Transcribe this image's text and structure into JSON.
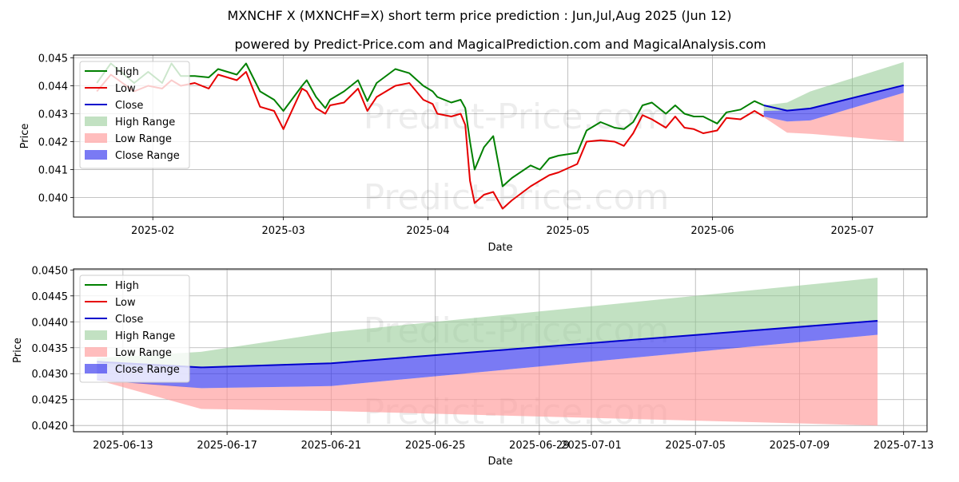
{
  "title": "MXNCHF X (MXNCHF=X) short term price prediction : Jun,Jul,Aug 2025 (Jun 12)",
  "subtitle": "powered by Predict-Price.com and MagicalPrediction.com and MagicalAnalysis.com",
  "watermark": "Predict-Price.com",
  "colors": {
    "high": "#008000",
    "low": "#e60000",
    "close": "#0000cc",
    "high_range": "#8fc98f",
    "low_range": "#ff9a9a",
    "close_range": "#3333ee",
    "grid": "#b0b0b0"
  },
  "legend": [
    "High",
    "Low",
    "Close",
    "High Range",
    "Low Range",
    "Close Range"
  ],
  "chart_data": [
    {
      "type": "line",
      "title": "",
      "xlabel": "Date",
      "ylabel": "Price",
      "xlim": [
        "2025-01-15",
        "2025-07-17"
      ],
      "ylim": [
        0.0393,
        0.0451
      ],
      "yticks": [
        0.04,
        0.041,
        0.042,
        0.043,
        0.044,
        0.045
      ],
      "ytick_labels": [
        "0.040",
        "0.041",
        "0.042",
        "0.043",
        "0.044",
        "0.045"
      ],
      "xticks": [
        "2025-02-01",
        "2025-03-01",
        "2025-04-01",
        "2025-05-01",
        "2025-06-01",
        "2025-07-01"
      ],
      "xtick_labels": [
        "2025-02",
        "2025-03",
        "2025-04",
        "2025-05",
        "2025-06",
        "2025-07"
      ],
      "grid": true,
      "legend_position": "top-left",
      "series": [
        {
          "name": "High",
          "x": [
            "2025-01-20",
            "2025-01-23",
            "2025-01-28",
            "2025-01-31",
            "2025-02-03",
            "2025-02-05",
            "2025-02-07",
            "2025-02-10",
            "2025-02-13",
            "2025-02-15",
            "2025-02-19",
            "2025-02-21",
            "2025-02-24",
            "2025-02-27",
            "2025-03-01",
            "2025-03-05",
            "2025-03-06",
            "2025-03-08",
            "2025-03-10",
            "2025-03-11",
            "2025-03-14",
            "2025-03-17",
            "2025-03-19",
            "2025-03-21",
            "2025-03-25",
            "2025-03-28",
            "2025-03-31",
            "2025-04-02",
            "2025-04-03",
            "2025-04-06",
            "2025-04-08",
            "2025-04-09",
            "2025-04-10",
            "2025-04-11",
            "2025-04-13",
            "2025-04-15",
            "2025-04-17",
            "2025-04-19",
            "2025-04-23",
            "2025-04-25",
            "2025-04-27",
            "2025-04-29",
            "2025-05-03",
            "2025-05-05",
            "2025-05-08",
            "2025-05-11",
            "2025-05-13",
            "2025-05-15",
            "2025-05-17",
            "2025-05-19",
            "2025-05-22",
            "2025-05-24",
            "2025-05-26",
            "2025-05-28",
            "2025-05-30",
            "2025-06-02",
            "2025-06-04",
            "2025-06-07",
            "2025-06-10",
            "2025-06-12"
          ],
          "values": [
            0.0441,
            0.0448,
            0.0441,
            0.0445,
            0.0441,
            0.0448,
            0.04435,
            0.04435,
            0.0443,
            0.0446,
            0.0444,
            0.0448,
            0.0438,
            0.0435,
            0.0431,
            0.044,
            0.0442,
            0.0436,
            0.0432,
            0.0435,
            0.0438,
            0.0442,
            0.04345,
            0.0441,
            0.0446,
            0.04445,
            0.044,
            0.0438,
            0.0436,
            0.0434,
            0.0435,
            0.0432,
            0.042,
            0.041,
            0.0418,
            0.0422,
            0.0404,
            0.0407,
            0.04115,
            0.041,
            0.0414,
            0.0415,
            0.0416,
            0.0424,
            0.0427,
            0.0425,
            0.04245,
            0.0427,
            0.0433,
            0.0434,
            0.043,
            0.0433,
            0.043,
            0.0429,
            0.0429,
            0.04265,
            0.04305,
            0.04315,
            0.04345,
            0.0433
          ]
        },
        {
          "name": "Low",
          "x": [
            "2025-01-20",
            "2025-01-23",
            "2025-01-28",
            "2025-01-31",
            "2025-02-03",
            "2025-02-05",
            "2025-02-07",
            "2025-02-10",
            "2025-02-13",
            "2025-02-15",
            "2025-02-19",
            "2025-02-21",
            "2025-02-24",
            "2025-02-27",
            "2025-03-01",
            "2025-03-05",
            "2025-03-06",
            "2025-03-08",
            "2025-03-10",
            "2025-03-11",
            "2025-03-14",
            "2025-03-17",
            "2025-03-19",
            "2025-03-21",
            "2025-03-25",
            "2025-03-28",
            "2025-03-31",
            "2025-04-02",
            "2025-04-03",
            "2025-04-06",
            "2025-04-08",
            "2025-04-09",
            "2025-04-10",
            "2025-04-11",
            "2025-04-13",
            "2025-04-15",
            "2025-04-17",
            "2025-04-19",
            "2025-04-23",
            "2025-04-25",
            "2025-04-27",
            "2025-04-29",
            "2025-05-03",
            "2025-05-05",
            "2025-05-08",
            "2025-05-11",
            "2025-05-13",
            "2025-05-15",
            "2025-05-17",
            "2025-05-19",
            "2025-05-22",
            "2025-05-24",
            "2025-05-26",
            "2025-05-28",
            "2025-05-30",
            "2025-06-02",
            "2025-06-04",
            "2025-06-07",
            "2025-06-10",
            "2025-06-12"
          ],
          "values": [
            0.0438,
            0.0444,
            0.0438,
            0.044,
            0.0439,
            0.0442,
            0.044,
            0.0441,
            0.0439,
            0.0444,
            0.0442,
            0.0445,
            0.04325,
            0.0431,
            0.04245,
            0.0439,
            0.0438,
            0.0432,
            0.043,
            0.0433,
            0.0434,
            0.0439,
            0.0431,
            0.0436,
            0.044,
            0.0441,
            0.0435,
            0.04335,
            0.043,
            0.0429,
            0.043,
            0.0426,
            0.0406,
            0.0398,
            0.0401,
            0.0402,
            0.0396,
            0.0399,
            0.0404,
            0.0406,
            0.0408,
            0.0409,
            0.0412,
            0.042,
            0.04205,
            0.042,
            0.04185,
            0.0423,
            0.04295,
            0.0428,
            0.0425,
            0.0429,
            0.0425,
            0.04245,
            0.0423,
            0.0424,
            0.04285,
            0.0428,
            0.0431,
            0.0429
          ]
        },
        {
          "name": "Close",
          "x": [
            "2025-06-12",
            "2025-06-17",
            "2025-06-22",
            "2025-07-12"
          ],
          "values": [
            0.0433,
            0.04311,
            0.04319,
            0.04402
          ]
        }
      ],
      "ranges": [
        {
          "name": "High Range",
          "x": [
            "2025-06-12",
            "2025-06-17",
            "2025-06-22",
            "2025-07-12"
          ],
          "upper": [
            0.0433,
            0.0434,
            0.0438,
            0.04485
          ],
          "lower": [
            0.0431,
            0.04312,
            0.0432,
            0.04402
          ]
        },
        {
          "name": "Low Range",
          "x": [
            "2025-06-12",
            "2025-06-17",
            "2025-06-22",
            "2025-07-12"
          ],
          "upper": [
            0.0429,
            0.04272,
            0.04276,
            0.04375
          ],
          "lower": [
            0.04288,
            0.04232,
            0.04228,
            0.042
          ]
        },
        {
          "name": "Close Range",
          "x": [
            "2025-06-12",
            "2025-06-17",
            "2025-06-22",
            "2025-07-12"
          ],
          "upper": [
            0.0431,
            0.04312,
            0.0432,
            0.04402
          ],
          "lower": [
            0.0429,
            0.04272,
            0.04276,
            0.04375
          ]
        }
      ]
    },
    {
      "type": "line",
      "title": "",
      "xlabel": "Date",
      "ylabel": "Price",
      "xlim": [
        "2025-06-11.10",
        "2025-07-13.90"
      ],
      "ylim": [
        0.04188,
        0.04502
      ],
      "yticks": [
        0.042,
        0.0425,
        0.043,
        0.0435,
        0.044,
        0.0445,
        0.045
      ],
      "ytick_labels": [
        "0.0420",
        "0.0425",
        "0.0430",
        "0.0435",
        "0.0440",
        "0.0445",
        "0.0450"
      ],
      "xticks": [
        "2025-06-13",
        "2025-06-17",
        "2025-06-21",
        "2025-06-25",
        "2025-06-29",
        "2025-07-01",
        "2025-07-05",
        "2025-07-09",
        "2025-07-13"
      ],
      "xtick_labels": [
        "2025-06-13",
        "2025-06-17",
        "2025-06-21",
        "2025-06-25",
        "2025-06-29",
        "2025-07-01",
        "2025-07-05",
        "2025-07-09",
        "2025-07-13"
      ],
      "grid": true,
      "legend_position": "top-left",
      "series": [
        {
          "name": "Close",
          "x": [
            "2025-06-12",
            "2025-06-16",
            "2025-06-21",
            "2025-07-12"
          ],
          "values": [
            0.04323,
            0.04312,
            0.0432,
            0.04402
          ]
        }
      ],
      "ranges": [
        {
          "name": "High Range",
          "x": [
            "2025-06-12",
            "2025-06-16",
            "2025-06-21",
            "2025-07-12"
          ],
          "upper": [
            0.0433,
            0.04342,
            0.0438,
            0.04485
          ],
          "lower": [
            0.04312,
            0.04312,
            0.0432,
            0.04402
          ]
        },
        {
          "name": "Low Range",
          "x": [
            "2025-06-12",
            "2025-06-16",
            "2025-06-21",
            "2025-07-12"
          ],
          "upper": [
            0.0429,
            0.04272,
            0.04276,
            0.04375
          ],
          "lower": [
            0.04288,
            0.04232,
            0.04228,
            0.042
          ]
        },
        {
          "name": "Close Range",
          "x": [
            "2025-06-12",
            "2025-06-16",
            "2025-06-21",
            "2025-07-12"
          ],
          "upper": [
            0.04323,
            0.04312,
            0.0432,
            0.04402
          ],
          "lower": [
            0.04287,
            0.04272,
            0.04276,
            0.04375
          ]
        }
      ]
    }
  ]
}
